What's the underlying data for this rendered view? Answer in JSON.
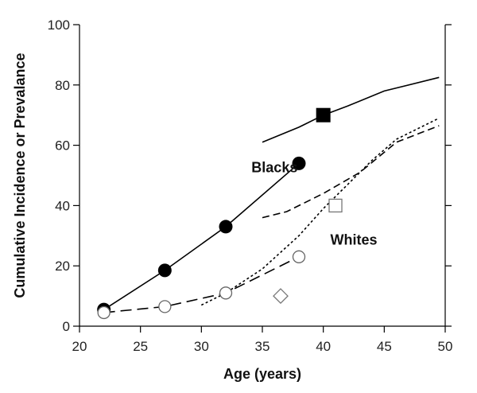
{
  "chart_data": {
    "type": "line",
    "title": "",
    "xlabel": "Age (years)",
    "ylabel": "Cumulative Incidence or Prevalance",
    "xlim": [
      20,
      50
    ],
    "ylim": [
      0,
      100
    ],
    "x_ticks": [
      20,
      25,
      30,
      35,
      40,
      45,
      50
    ],
    "y_ticks": [
      0,
      20,
      40,
      60,
      80,
      100
    ],
    "grid": false,
    "annotations": [
      {
        "text": "Blacks",
        "x": 36,
        "y": 51
      },
      {
        "text": "Whites",
        "x": 42.5,
        "y": 27
      }
    ],
    "series": [
      {
        "style": "solid",
        "color": "#000000",
        "marker": "filled-circle",
        "x": [
          22,
          27,
          32,
          38
        ],
        "y": [
          5.5,
          18.5,
          33,
          54
        ]
      },
      {
        "style": "long-dash",
        "color": "#000000",
        "marker": "open-circle",
        "x": [
          22,
          27,
          32,
          38
        ],
        "y": [
          4.5,
          6.5,
          11,
          23
        ]
      },
      {
        "style": "solid",
        "color": "#000000",
        "marker": "none",
        "x": [
          35,
          38,
          40,
          42,
          45,
          49.5
        ],
        "y": [
          61,
          66,
          70,
          73,
          78,
          82.5
        ]
      },
      {
        "style": "short-dash",
        "color": "#000000",
        "marker": "none",
        "x": [
          30,
          32,
          35,
          38,
          40,
          42,
          44,
          46,
          49.5
        ],
        "y": [
          7,
          11,
          19,
          30,
          39,
          47,
          55,
          62,
          69
        ]
      },
      {
        "style": "dash",
        "color": "#000000",
        "marker": "none",
        "x": [
          35,
          37,
          40,
          43,
          46,
          49.5
        ],
        "y": [
          36,
          38,
          44,
          51,
          61,
          66.5
        ]
      },
      {
        "style": "none",
        "color": "#000000",
        "marker": "filled-square",
        "x": [
          40
        ],
        "y": [
          70
        ]
      },
      {
        "style": "none",
        "color": "#000000",
        "marker": "open-square",
        "x": [
          41
        ],
        "y": [
          40
        ]
      },
      {
        "style": "none",
        "color": "#000000",
        "marker": "open-diamond",
        "x": [
          36.5
        ],
        "y": [
          10
        ]
      }
    ]
  }
}
